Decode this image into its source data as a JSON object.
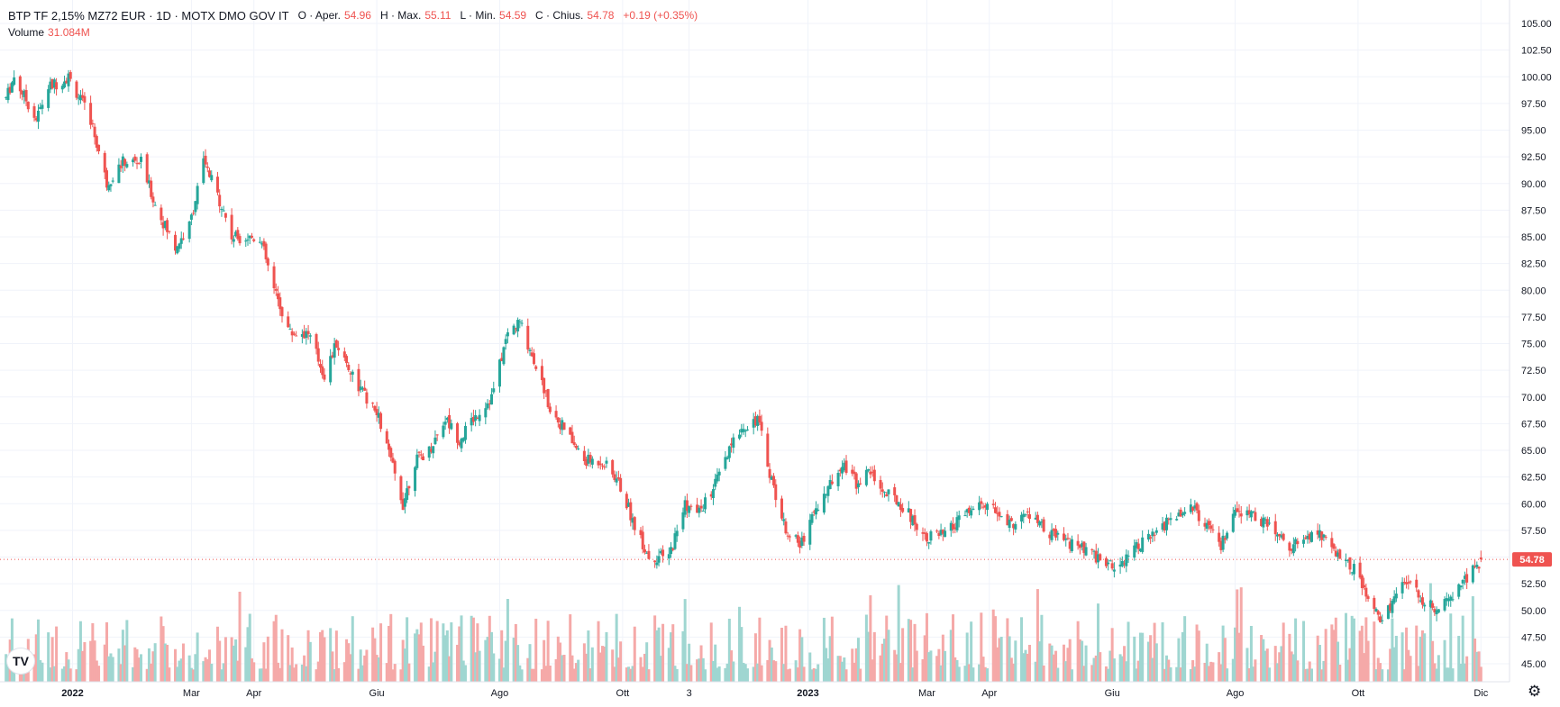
{
  "legend": {
    "title": "BTP TF 2,15% MZ72 EUR · 1D · MOTX DMO GOV IT",
    "open_label": "O · Aper.",
    "open": "54.96",
    "high_label": "H · Max.",
    "high": "55.11",
    "low_label": "L · Min.",
    "low": "54.59",
    "close_label": "C · Chius.",
    "close": "54.78",
    "change": "+0.19 (+0.35%)",
    "volume_label": "Volume",
    "volume": "31.084M"
  },
  "logo": "TV",
  "settings_icon": "gear-icon",
  "colors": {
    "up": "#26a69a",
    "down": "#ef5350",
    "up_vol": "#9fd6d1",
    "down_vol": "#f5a9a8",
    "grid": "#f0f3fa",
    "axis_text": "#131722"
  },
  "chart_data": {
    "type": "candlestick",
    "instrument": "BTP TF 2,15% MZ72 EUR",
    "interval": "1D",
    "y_axis": {
      "ticks": [
        45.0,
        47.5,
        50.0,
        52.5,
        55.0,
        57.5,
        60.0,
        62.5,
        65.0,
        67.5,
        70.0,
        72.5,
        75.0,
        77.5,
        80.0,
        82.5,
        85.0,
        87.5,
        90.0,
        92.5,
        95.0,
        97.5,
        100.0,
        102.5,
        105.0
      ],
      "range": [
        43.5,
        106.5
      ]
    },
    "x_axis": {
      "labels": [
        {
          "label": "2022",
          "bold": true,
          "date": "2022-01"
        },
        {
          "label": "Mar",
          "date": "2022-03"
        },
        {
          "label": "Apr",
          "date": "2022-04"
        },
        {
          "label": "Giu",
          "date": "2022-06"
        },
        {
          "label": "Ago",
          "date": "2022-08"
        },
        {
          "label": "Ott",
          "date": "2022-10"
        },
        {
          "label": "3",
          "date": "2022-11-03"
        },
        {
          "label": "2023",
          "bold": true,
          "date": "2023-01"
        },
        {
          "label": "Mar",
          "date": "2023-03"
        },
        {
          "label": "Apr",
          "date": "2023-04"
        },
        {
          "label": "Giu",
          "date": "2023-06"
        },
        {
          "label": "Ago",
          "date": "2023-08"
        },
        {
          "label": "Ott",
          "date": "2023-10"
        },
        {
          "label": "Dic",
          "date": "2023-12"
        }
      ]
    },
    "price_path": [
      {
        "date": "2021-11-29",
        "close": 98
      },
      {
        "date": "2021-12-03",
        "close": 100
      },
      {
        "date": "2021-12-14",
        "close": 96
      },
      {
        "date": "2021-12-20",
        "close": 99
      },
      {
        "date": "2021-12-30",
        "close": 100
      },
      {
        "date": "2022-01-10",
        "close": 96
      },
      {
        "date": "2022-01-18",
        "close": 90
      },
      {
        "date": "2022-01-26",
        "close": 92
      },
      {
        "date": "2022-02-04",
        "close": 92
      },
      {
        "date": "2022-02-11",
        "close": 88
      },
      {
        "date": "2022-02-21",
        "close": 84
      },
      {
        "date": "2022-02-28",
        "close": 86
      },
      {
        "date": "2022-03-07",
        "close": 92
      },
      {
        "date": "2022-03-16",
        "close": 88
      },
      {
        "date": "2022-03-21",
        "close": 85
      },
      {
        "date": "2022-04-04",
        "close": 85
      },
      {
        "date": "2022-04-11",
        "close": 80
      },
      {
        "date": "2022-04-19",
        "close": 76
      },
      {
        "date": "2022-04-28",
        "close": 76
      },
      {
        "date": "2022-05-06",
        "close": 72
      },
      {
        "date": "2022-05-12",
        "close": 75
      },
      {
        "date": "2022-05-23",
        "close": 71
      },
      {
        "date": "2022-06-02",
        "close": 68
      },
      {
        "date": "2022-06-08",
        "close": 64
      },
      {
        "date": "2022-06-14",
        "close": 60
      },
      {
        "date": "2022-06-20",
        "close": 64
      },
      {
        "date": "2022-06-27",
        "close": 65
      },
      {
        "date": "2022-07-05",
        "close": 68
      },
      {
        "date": "2022-07-12",
        "close": 66
      },
      {
        "date": "2022-07-19",
        "close": 68
      },
      {
        "date": "2022-07-28",
        "close": 70
      },
      {
        "date": "2022-08-05",
        "close": 76
      },
      {
        "date": "2022-08-11",
        "close": 77
      },
      {
        "date": "2022-08-19",
        "close": 73
      },
      {
        "date": "2022-08-26",
        "close": 69
      },
      {
        "date": "2022-09-02",
        "close": 67
      },
      {
        "date": "2022-09-12",
        "close": 64
      },
      {
        "date": "2022-09-21",
        "close": 64
      },
      {
        "date": "2022-09-29",
        "close": 62
      },
      {
        "date": "2022-10-07",
        "close": 58
      },
      {
        "date": "2022-10-14",
        "close": 55
      },
      {
        "date": "2022-10-24",
        "close": 55
      },
      {
        "date": "2022-11-01",
        "close": 60
      },
      {
        "date": "2022-11-07",
        "close": 59
      },
      {
        "date": "2022-11-14",
        "close": 61
      },
      {
        "date": "2022-11-21",
        "close": 64
      },
      {
        "date": "2022-11-28",
        "close": 67
      },
      {
        "date": "2022-12-07",
        "close": 68
      },
      {
        "date": "2022-12-13",
        "close": 63
      },
      {
        "date": "2022-12-20",
        "close": 58
      },
      {
        "date": "2022-12-28",
        "close": 56
      },
      {
        "date": "2023-01-03",
        "close": 59
      },
      {
        "date": "2023-01-10",
        "close": 61
      },
      {
        "date": "2023-01-18",
        "close": 64
      },
      {
        "date": "2023-01-25",
        "close": 62
      },
      {
        "date": "2023-02-01",
        "close": 63
      },
      {
        "date": "2023-02-08",
        "close": 61
      },
      {
        "date": "2023-02-16",
        "close": 60
      },
      {
        "date": "2023-02-28",
        "close": 57
      },
      {
        "date": "2023-03-10",
        "close": 57
      },
      {
        "date": "2023-03-20",
        "close": 59
      },
      {
        "date": "2023-03-30",
        "close": 60
      },
      {
        "date": "2023-04-11",
        "close": 58
      },
      {
        "date": "2023-04-20",
        "close": 59
      },
      {
        "date": "2023-05-02",
        "close": 57
      },
      {
        "date": "2023-05-15",
        "close": 56
      },
      {
        "date": "2023-05-24",
        "close": 55
      },
      {
        "date": "2023-06-02",
        "close": 54
      },
      {
        "date": "2023-06-12",
        "close": 56
      },
      {
        "date": "2023-06-22",
        "close": 57
      },
      {
        "date": "2023-07-03",
        "close": 59
      },
      {
        "date": "2023-07-10",
        "close": 60
      },
      {
        "date": "2023-07-17",
        "close": 58
      },
      {
        "date": "2023-07-25",
        "close": 56
      },
      {
        "date": "2023-08-01",
        "close": 59
      },
      {
        "date": "2023-08-09",
        "close": 59
      },
      {
        "date": "2023-08-18",
        "close": 58
      },
      {
        "date": "2023-08-28",
        "close": 56
      },
      {
        "date": "2023-09-06",
        "close": 57
      },
      {
        "date": "2023-09-14",
        "close": 57
      },
      {
        "date": "2023-09-22",
        "close": 55
      },
      {
        "date": "2023-09-29",
        "close": 54
      },
      {
        "date": "2023-10-06",
        "close": 51
      },
      {
        "date": "2023-10-12",
        "close": 49
      },
      {
        "date": "2023-10-19",
        "close": 51
      },
      {
        "date": "2023-10-26",
        "close": 53
      },
      {
        "date": "2023-11-02",
        "close": 51
      },
      {
        "date": "2023-11-10",
        "close": 50
      },
      {
        "date": "2023-11-16",
        "close": 51
      },
      {
        "date": "2023-11-23",
        "close": 53
      },
      {
        "date": "2023-11-28",
        "close": 54
      },
      {
        "date": "2023-12-01",
        "close": 54.78
      }
    ],
    "last_price": 54.78,
    "volume_series": true
  }
}
